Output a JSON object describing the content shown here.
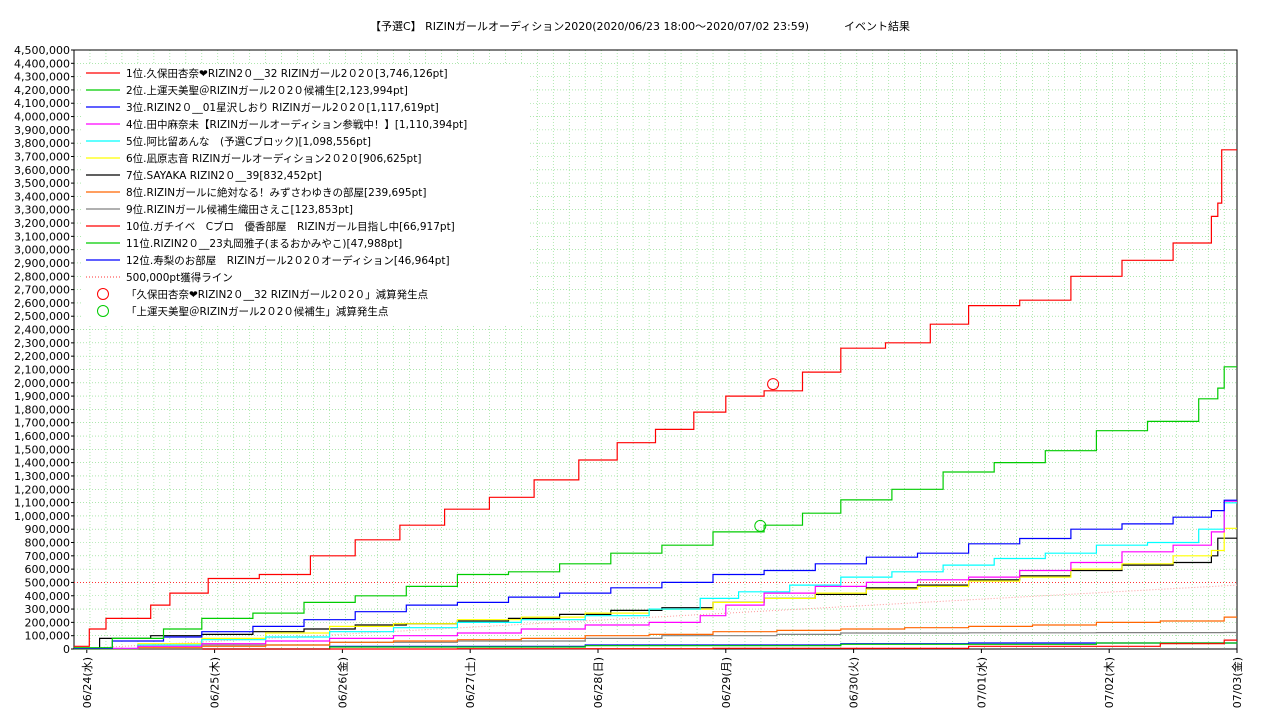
{
  "chart_data": {
    "type": "line",
    "title": "【予選C】 RIZINガールオーディション2020(2020/06/23 18:00〜2020/07/02 23:59)",
    "subtitle": "イベント結果",
    "xlabel": "",
    "ylabel": "",
    "ylim": [
      0,
      4500000
    ],
    "ytick_step": 100000,
    "xlim": [
      0,
      9.1
    ],
    "x_tick_labels": [
      "06/24(水)",
      "06/25(木)",
      "06/26(金)",
      "06/27(土)",
      "06/28(日)",
      "06/29(月)",
      "06/30(火)",
      "07/01(水)",
      "07/02(木)",
      "07/03(金)"
    ],
    "x_tick_positions": [
      0.1,
      1.1,
      2.1,
      3.1,
      4.1,
      5.1,
      6.1,
      7.1,
      8.1,
      9.1
    ],
    "grid": true,
    "legend_position": "top-left",
    "series": [
      {
        "name": "1位.久保田杏奈❤RIZIN2０__32 RIZINガール2０2０[3,746,126pt]",
        "color": "#ff0000",
        "x": [
          0,
          0.12,
          0.25,
          0.6,
          0.75,
          1.05,
          1.45,
          1.85,
          2.2,
          2.55,
          2.9,
          3.25,
          3.6,
          3.95,
          4.25,
          4.55,
          4.85,
          5.1,
          5.4,
          5.7,
          6.0,
          6.35,
          6.7,
          7.0,
          7.4,
          7.8,
          8.2,
          8.6,
          8.9,
          8.95,
          8.98,
          9.1
        ],
        "values": [
          20000,
          150000,
          230000,
          330000,
          420000,
          530000,
          560000,
          700000,
          820000,
          930000,
          1050000,
          1140000,
          1270000,
          1420000,
          1550000,
          1650000,
          1780000,
          1900000,
          1940000,
          2080000,
          2260000,
          2300000,
          2440000,
          2580000,
          2620000,
          2800000,
          2920000,
          3050000,
          3250000,
          3350000,
          3750000,
          3750000
        ]
      },
      {
        "name": "2位.上運天美聖＠RIZINガール2０2０候補生[2,123,994pt]",
        "color": "#00cc00",
        "x": [
          0,
          0.3,
          0.7,
          1.0,
          1.4,
          1.8,
          2.2,
          2.6,
          3.0,
          3.4,
          3.8,
          4.2,
          4.6,
          5.0,
          5.4,
          5.7,
          6.0,
          6.4,
          6.8,
          7.2,
          7.6,
          8.0,
          8.4,
          8.8,
          8.95,
          9.0,
          9.1
        ],
        "values": [
          10000,
          80000,
          150000,
          230000,
          270000,
          350000,
          400000,
          470000,
          560000,
          580000,
          640000,
          720000,
          780000,
          880000,
          930000,
          1020000,
          1120000,
          1200000,
          1330000,
          1400000,
          1490000,
          1640000,
          1710000,
          1880000,
          1960000,
          2120000,
          2120000
        ]
      },
      {
        "name": "3位.RIZIN2０__01星沢しおり RIZINガール2０2０[1,117,619pt]",
        "color": "#0000ff",
        "x": [
          0,
          0.3,
          0.7,
          1.0,
          1.4,
          1.8,
          2.2,
          2.6,
          3.0,
          3.4,
          3.8,
          4.2,
          4.6,
          5.0,
          5.4,
          5.8,
          6.2,
          6.6,
          7.0,
          7.4,
          7.8,
          8.2,
          8.6,
          8.9,
          9.0,
          9.1
        ],
        "values": [
          5000,
          60000,
          90000,
          130000,
          170000,
          220000,
          280000,
          330000,
          350000,
          390000,
          420000,
          460000,
          500000,
          560000,
          590000,
          640000,
          690000,
          720000,
          790000,
          830000,
          900000,
          940000,
          990000,
          1040000,
          1117619,
          1117619
        ]
      },
      {
        "name": "4位.田中麻奈未【RIZINガールオーディション参戦中！】[1,110,394pt]",
        "color": "#ff00ff",
        "x": [
          0,
          0.5,
          1.0,
          1.5,
          2.0,
          2.5,
          3.0,
          3.5,
          4.0,
          4.5,
          4.9,
          5.1,
          5.4,
          5.8,
          6.2,
          6.6,
          7.0,
          7.4,
          7.8,
          8.2,
          8.6,
          8.9,
          9.0,
          9.1
        ],
        "values": [
          5000,
          20000,
          40000,
          60000,
          80000,
          100000,
          120000,
          150000,
          180000,
          200000,
          250000,
          330000,
          420000,
          470000,
          500000,
          520000,
          540000,
          590000,
          650000,
          730000,
          780000,
          880000,
          1110394,
          1110394
        ]
      },
      {
        "name": "5位.阿比留あんな　(予選Cブロック)[1,098,556pt]",
        "color": "#00ffff",
        "x": [
          0,
          0.5,
          1.0,
          1.5,
          2.0,
          2.5,
          3.0,
          3.5,
          4.0,
          4.5,
          4.9,
          5.2,
          5.6,
          6.0,
          6.4,
          6.8,
          7.2,
          7.6,
          8.0,
          8.4,
          8.8,
          9.0,
          9.1
        ],
        "values": [
          3000,
          30000,
          70000,
          90000,
          130000,
          160000,
          200000,
          220000,
          250000,
          300000,
          380000,
          430000,
          480000,
          540000,
          580000,
          630000,
          680000,
          720000,
          780000,
          800000,
          900000,
          1098556,
          1098556
        ]
      },
      {
        "name": "6位.凪原志音 RIZINガールオーディション2０2０[906,625pt]",
        "color": "#ffff00",
        "x": [
          0,
          0.5,
          1.0,
          1.5,
          2.0,
          2.5,
          3.0,
          3.5,
          4.0,
          4.5,
          5.0,
          5.4,
          5.8,
          6.2,
          6.6,
          7.0,
          7.4,
          7.8,
          8.2,
          8.6,
          8.9,
          9.0,
          9.1
        ],
        "values": [
          3000,
          40000,
          80000,
          120000,
          170000,
          190000,
          220000,
          240000,
          270000,
          300000,
          350000,
          380000,
          420000,
          450000,
          470000,
          510000,
          540000,
          600000,
          640000,
          700000,
          740000,
          906625,
          906625
        ]
      },
      {
        "name": "7位.SAYAKA RIZIN2０__39[832,452pt]",
        "color": "#000000",
        "x": [
          0,
          0.2,
          0.6,
          1.0,
          1.4,
          1.8,
          2.2,
          2.6,
          3.0,
          3.4,
          3.8,
          4.2,
          4.6,
          5.0,
          5.4,
          5.8,
          6.2,
          6.6,
          7.0,
          7.4,
          7.8,
          8.2,
          8.6,
          8.9,
          8.95,
          9.1
        ],
        "values": [
          3000,
          80000,
          100000,
          110000,
          130000,
          150000,
          180000,
          190000,
          210000,
          230000,
          260000,
          290000,
          310000,
          350000,
          380000,
          410000,
          460000,
          480000,
          520000,
          550000,
          590000,
          630000,
          650000,
          700000,
          832452,
          832452
        ]
      },
      {
        "name": "8位.RIZINガールに絶対なる！みずさわゆきの部屋[239,695pt]",
        "color": "#ff6600",
        "x": [
          0,
          0.5,
          1.0,
          1.5,
          2.0,
          2.5,
          3.0,
          3.5,
          4.0,
          4.5,
          5.0,
          5.5,
          6.0,
          6.5,
          7.0,
          7.5,
          8.0,
          8.5,
          9.0,
          9.1
        ],
        "values": [
          0,
          10000,
          20000,
          30000,
          50000,
          60000,
          70000,
          80000,
          100000,
          110000,
          130000,
          140000,
          150000,
          160000,
          170000,
          180000,
          200000,
          210000,
          239695,
          239695
        ]
      },
      {
        "name": "9位.RIZINガール候補生織田さえこ[123,853pt]",
        "color": "#808080",
        "x": [
          0,
          1.0,
          2.0,
          3.0,
          4.0,
          4.6,
          5.5,
          6.0,
          7.0,
          8.0,
          9.0,
          9.1
        ],
        "values": [
          0,
          30000,
          50000,
          60000,
          80000,
          100000,
          110000,
          120000,
          122000,
          123000,
          123853,
          123853
        ]
      },
      {
        "name": "10位.ガチイベ　Cブロ　優香部屋　RIZINガール目指し中[66,917pt]",
        "color": "#ff0000",
        "x": [
          0,
          3.0,
          5.0,
          7.0,
          8.5,
          9.0,
          9.1
        ],
        "values": [
          0,
          2000,
          5000,
          20000,
          40000,
          66917,
          66917
        ]
      },
      {
        "name": "11位.RIZIN2０__23丸岡雅子(まるおかみやこ)[47,988pt]",
        "color": "#00cc00",
        "x": [
          0,
          2.0,
          4.0,
          6.0,
          8.0,
          9.1
        ],
        "values": [
          0,
          15000,
          25000,
          35000,
          45000,
          47988
        ]
      },
      {
        "name": "12位.寿梨のお部屋　RIZINガール2０2０オーディション[46,964pt]",
        "color": "#0000ff",
        "x": [
          0,
          2.0,
          4.0,
          6.0,
          7.0,
          9.1
        ],
        "values": [
          0,
          20000,
          30000,
          40000,
          45000,
          46964
        ]
      }
    ],
    "threshold_line": {
      "name": "500,000pt獲得ライン",
      "value": 500000,
      "color": "#ff3333"
    },
    "trend_line": {
      "color": "#ff9999",
      "x": [
        0,
        9.1
      ],
      "values": [
        0,
        480000
      ]
    },
    "markers": [
      {
        "name": "「久保田杏奈❤RIZIN2０__32 RIZINガール2０2０」減算発生点",
        "x": 5.47,
        "value": 1990000,
        "color": "#ff0000"
      },
      {
        "name": "「上運天美聖＠RIZINガール2０2０候補生」減算発生点",
        "x": 5.37,
        "value": 925000,
        "color": "#00cc00"
      }
    ]
  }
}
